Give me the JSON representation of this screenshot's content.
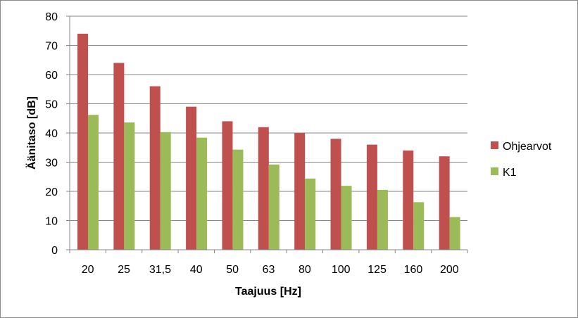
{
  "chart_data": {
    "type": "bar",
    "xlabel": "Taajuus [Hz]",
    "ylabel": "Äänitaso [dB]",
    "ylim": [
      0,
      80
    ],
    "yticks": [
      0,
      10,
      20,
      30,
      40,
      50,
      60,
      70,
      80
    ],
    "grid": true,
    "legend_position": "right",
    "categories": [
      "20",
      "25",
      "31,5",
      "40",
      "50",
      "63",
      "80",
      "100",
      "125",
      "160",
      "200"
    ],
    "series": [
      {
        "name": "Ohjearvot",
        "color": "#c0504d",
        "values": [
          74,
          64,
          56,
          49,
          44,
          42,
          40,
          38,
          36,
          34,
          32
        ]
      },
      {
        "name": "K1",
        "color": "#9bbb59",
        "values": [
          46.2,
          43.6,
          40.3,
          38.4,
          34.3,
          29.2,
          24.4,
          21.9,
          20.5,
          16.3,
          11.2
        ]
      }
    ]
  }
}
